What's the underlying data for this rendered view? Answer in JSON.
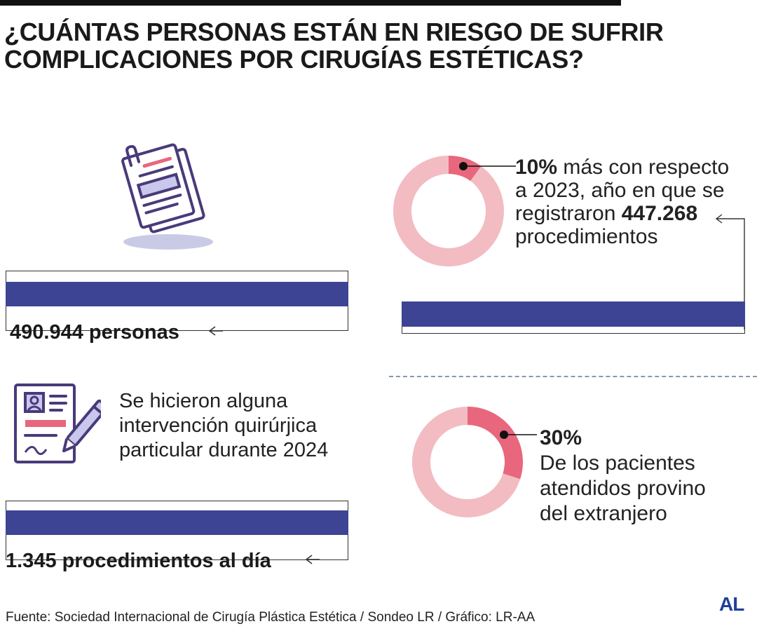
{
  "title_line1": "¿CUÁNTAS PERSONAS ESTÁN EN RIESGO DE SUFRIR",
  "title_line2": "COMPLICACIONES POR CIRUGÍAS ESTÉTICAS?",
  "stat_people": "490.944 personas",
  "intervention_line1": "Se hicieron alguna",
  "intervention_line2": "intervención quirúrjica",
  "intervention_line3": "particular durante 2024",
  "stat_per_day": "1.345 procedimientos al día",
  "growth": {
    "value": "10%",
    "line1_rest": " más con respecto",
    "line2": "a 2023, año en que se",
    "line3_pre": "registraron ",
    "line3_value": "447.268",
    "line4": "procedimientos"
  },
  "foreign": {
    "value": "30%",
    "line1": "De los pacientes",
    "line2": "atendidos provino",
    "line3": "del extranjero"
  },
  "source": "Fuente: Sociedad Internacional de Cirugía Plástica Estética / Sondeo LR / Gráfico: LR-AA",
  "logo": "AL",
  "colors": {
    "bar": "#3d4494",
    "donut_track": "#f2bcc2",
    "donut_highlight": "#e8677c",
    "icon_stroke": "#4a3a7a",
    "icon_fill": "#c9c8ec",
    "logo": "#1f3f9a"
  },
  "icons": [
    "documents-icon",
    "form-signature-icon"
  ],
  "chart_data": [
    {
      "type": "pie",
      "style": "donut",
      "values": [
        10,
        90
      ],
      "highlight_index": 0
    },
    {
      "type": "pie",
      "style": "donut",
      "values": [
        30,
        70
      ],
      "highlight_index": 0
    }
  ]
}
